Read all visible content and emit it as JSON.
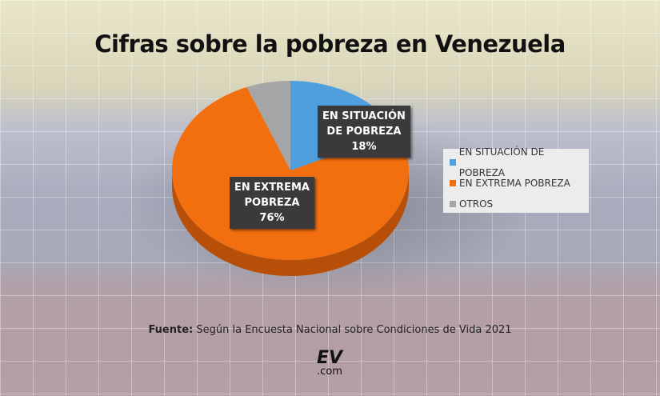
{
  "chart_data": {
    "type": "pie",
    "title": "Cifras sobre la pobreza en Venezuela",
    "categories": [
      "EN SITUACIÓN DE POBREZA",
      "EN EXTREMA POBREZA",
      "OTROS"
    ],
    "values": [
      18,
      76,
      6
    ],
    "colors": [
      "#4f9fdf",
      "#f26f0f",
      "#a5a5a5"
    ],
    "data_labels": [
      {
        "lines": [
          "EN SITUACIÓN",
          "DE POBREZA"
        ],
        "value": "18%"
      },
      {
        "lines": [
          "EN EXTREMA",
          "POBREZA"
        ],
        "value": "76%"
      }
    ],
    "legend_position": "right"
  },
  "source": {
    "label": "Fuente:",
    "text": " Según la Encuesta Nacional sobre Condiciones de Vida 2021"
  },
  "logo": {
    "text": "EV",
    "sub": ".com"
  }
}
